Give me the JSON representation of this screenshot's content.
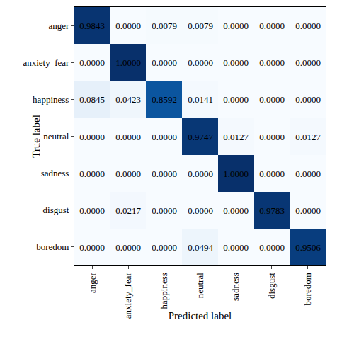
{
  "chart_data": {
    "type": "heatmap",
    "x_label": "Predicted label",
    "y_label": "True label",
    "categories": [
      "anger",
      "anxiety_fear",
      "happiness",
      "neutral",
      "sadness",
      "disgust",
      "boredom"
    ],
    "cells": [
      [
        0.9843,
        0,
        0.0079,
        0.0079,
        0,
        0,
        0
      ],
      [
        0,
        1,
        0,
        0,
        0,
        0,
        0
      ],
      [
        0.0845,
        0.0423,
        0.8592,
        0.0141,
        0,
        0,
        0
      ],
      [
        0,
        0,
        0,
        0.9747,
        0.0127,
        0,
        0.0127
      ],
      [
        0,
        0,
        0,
        0,
        1,
        0,
        0
      ],
      [
        0,
        0.0217,
        0,
        0,
        0,
        0.9783,
        0
      ],
      [
        0,
        0,
        0,
        0.0494,
        0,
        0,
        0.9506
      ]
    ],
    "value_labels": [
      [
        "0.9843",
        "0.0000",
        "0.0079",
        "0.0079",
        "0.0000",
        "0.0000",
        "0.0000"
      ],
      [
        "0.0000",
        "1.0000",
        "0.0000",
        "0.0000",
        "0.0000",
        "0.0000",
        "0.0000"
      ],
      [
        "0.0845",
        "0.0423",
        "0.8592",
        "0.0141",
        "0.0000",
        "0.0000",
        "0.0000"
      ],
      [
        "0.0000",
        "0.0000",
        "0.0000",
        "0.9747",
        "0.0127",
        "0.0000",
        "0.0127"
      ],
      [
        "0.0000",
        "0.0000",
        "0.0000",
        "0.0000",
        "1.0000",
        "0.0000",
        "0.0000"
      ],
      [
        "0.0000",
        "0.0217",
        "0.0000",
        "0.0000",
        "0.0000",
        "0.9783",
        "0.0000"
      ],
      [
        "0.0000",
        "0.0000",
        "0.0000",
        "0.0494",
        "0.0000",
        "0.0000",
        "0.9506"
      ]
    ],
    "zlim": [
      0,
      1
    ],
    "color": "Blues",
    "data_labels": true
  }
}
